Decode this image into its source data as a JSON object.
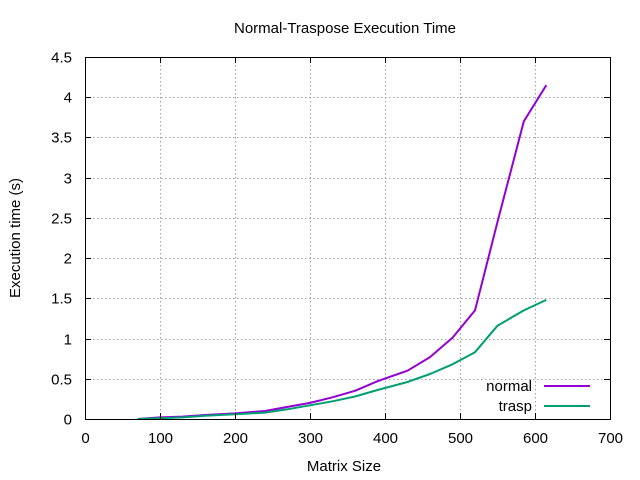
{
  "chart_data": {
    "type": "line",
    "title": "Normal-Traspose Execution Time",
    "xlabel": "Matrix Size",
    "ylabel": "Execution time (s)",
    "xlim": [
      0,
      700
    ],
    "ylim": [
      0,
      4.5
    ],
    "xticks": [
      "0",
      "100",
      "200",
      "300",
      "400",
      "500",
      "600",
      "700"
    ],
    "yticks": [
      "0",
      "0.5",
      "1",
      "1.5",
      "2",
      "2.5",
      "3",
      "3.5",
      "4",
      "4.5"
    ],
    "grid": true,
    "legend_position": "bottom-right",
    "series": [
      {
        "name": "normal",
        "color": "#9400d3",
        "x": [
          70,
          100,
          130,
          160,
          200,
          240,
          270,
          300,
          330,
          360,
          390,
          430,
          460,
          490,
          520,
          550,
          585,
          615
        ],
        "y": [
          0.0,
          0.02,
          0.03,
          0.05,
          0.07,
          0.1,
          0.15,
          0.2,
          0.27,
          0.35,
          0.47,
          0.6,
          0.77,
          1.01,
          1.35,
          2.45,
          3.7,
          4.15
        ]
      },
      {
        "name": "trasp",
        "color": "#009e73",
        "x": [
          70,
          100,
          130,
          160,
          200,
          240,
          270,
          300,
          330,
          360,
          390,
          430,
          460,
          490,
          520,
          550,
          585,
          615
        ],
        "y": [
          0.0,
          0.01,
          0.02,
          0.04,
          0.06,
          0.08,
          0.12,
          0.17,
          0.22,
          0.28,
          0.36,
          0.46,
          0.56,
          0.68,
          0.83,
          1.16,
          1.35,
          1.48
        ]
      }
    ]
  }
}
